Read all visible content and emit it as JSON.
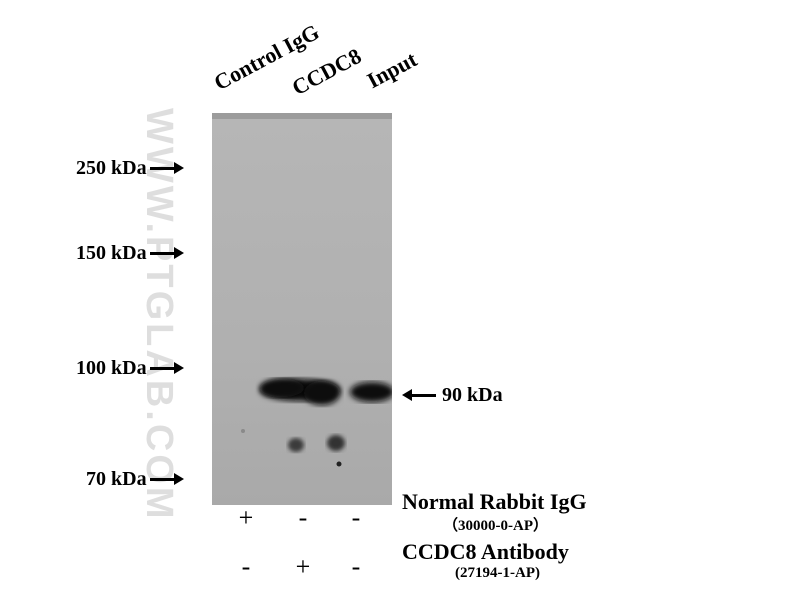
{
  "lanes": [
    {
      "label": "Control IgG"
    },
    {
      "label": "CCDC8"
    },
    {
      "label": "Input"
    }
  ],
  "markers": [
    {
      "label": "250 kDa"
    },
    {
      "label": "150 kDa"
    },
    {
      "label": "100 kDa"
    },
    {
      "label": "70 kDa"
    }
  ],
  "band_label": "90 kDa",
  "watermark": "WWW.PTGLAB.COM",
  "legend": {
    "row1": {
      "name": "Normal Rabbit IgG",
      "catalog": "（30000-0-AP）",
      "signs": [
        "+",
        "-",
        "-"
      ]
    },
    "row2": {
      "name": "CCDC8 Antibody",
      "catalog": "(27194-1-AP)",
      "signs": [
        "-",
        "+",
        "-"
      ]
    }
  },
  "colors": {
    "blot_bg": "#b3b3b3",
    "band": "#0a0a0a"
  }
}
